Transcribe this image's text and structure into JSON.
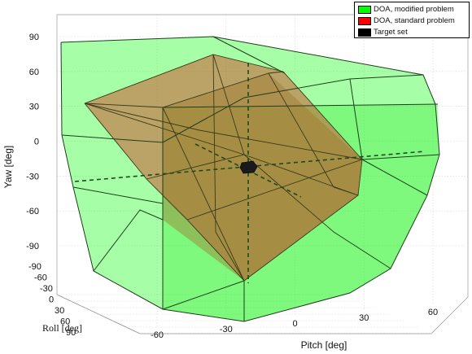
{
  "chart_data": {
    "type": "3d-polyhedron",
    "xlabel": "Pitch [deg]",
    "ylabel": "Roll [deg]",
    "zlabel": "Yaw [deg]",
    "xlim": [
      -90,
      90
    ],
    "ylim": [
      -90,
      90
    ],
    "zlim": [
      -90,
      90
    ],
    "xticks": [
      "-60",
      "-30",
      "0",
      "30",
      "60"
    ],
    "yticks": [
      "-90",
      "-60",
      "-30",
      "0",
      "30",
      "60",
      "90"
    ],
    "zticks": [
      "90",
      "60",
      "30",
      "0",
      "-30",
      "-60",
      "-90"
    ],
    "grid": true,
    "legend_position": "top-right",
    "series": [
      {
        "name": "DOA, modified problem",
        "color": "#00ff00",
        "shape": "convex polyhedron",
        "approx_extent": {
          "pitch": [
            -90,
            90
          ],
          "roll": [
            -90,
            90
          ],
          "yaw": [
            -90,
            90
          ]
        }
      },
      {
        "name": "DOA, standard problem",
        "color": "#ff0000",
        "shape": "convex polyhedron",
        "approx_extent": {
          "pitch": [
            -60,
            60
          ],
          "roll": [
            -60,
            60
          ],
          "yaw": [
            -75,
            75
          ]
        }
      },
      {
        "name": "Target set",
        "color": "#000000",
        "shape": "small cube at origin",
        "approx_extent": {
          "pitch": [
            -5,
            5
          ],
          "roll": [
            -5,
            5
          ],
          "yaw": [
            -5,
            5
          ]
        }
      }
    ]
  }
}
